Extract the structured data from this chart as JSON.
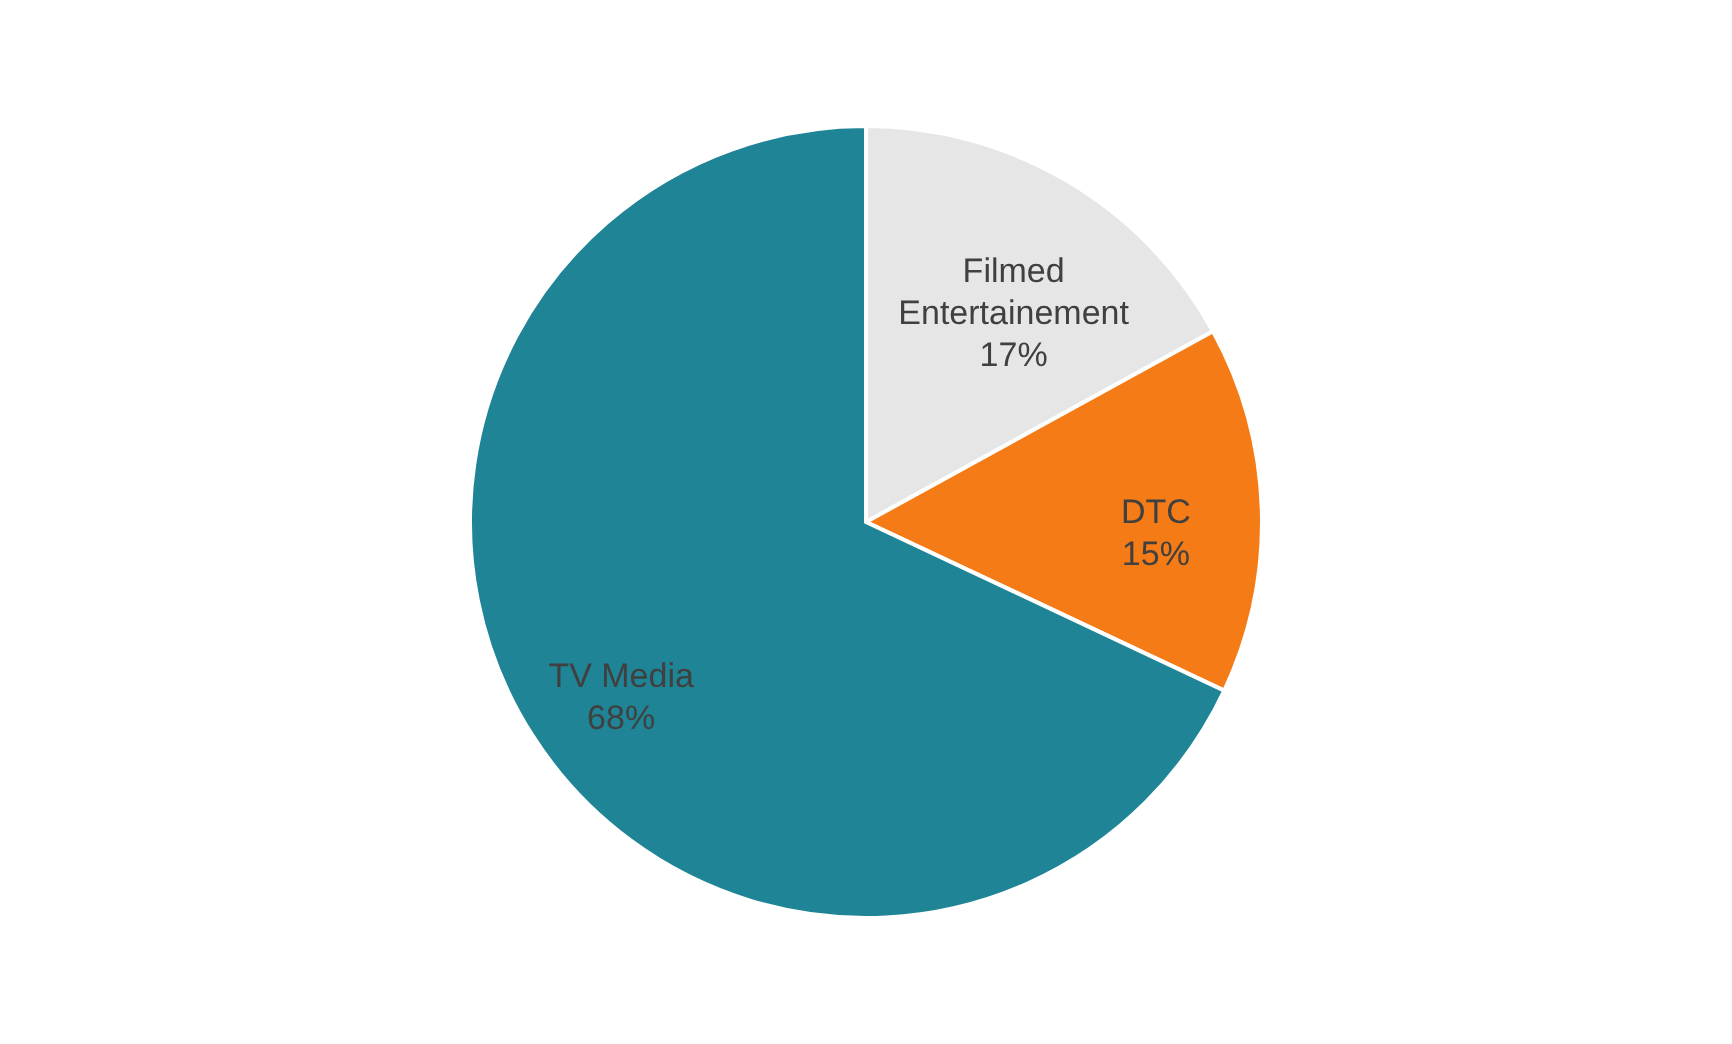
{
  "chart_data": {
    "type": "pie",
    "categories": [
      "Filmed Entertainement",
      "DTC",
      "TV Media"
    ],
    "values": [
      17,
      15,
      68
    ],
    "colors": [
      "#e7e6e6",
      "#f47b16",
      "#1f8496"
    ],
    "value_labels": [
      "17%",
      "15%",
      "68%"
    ],
    "legend": false
  }
}
